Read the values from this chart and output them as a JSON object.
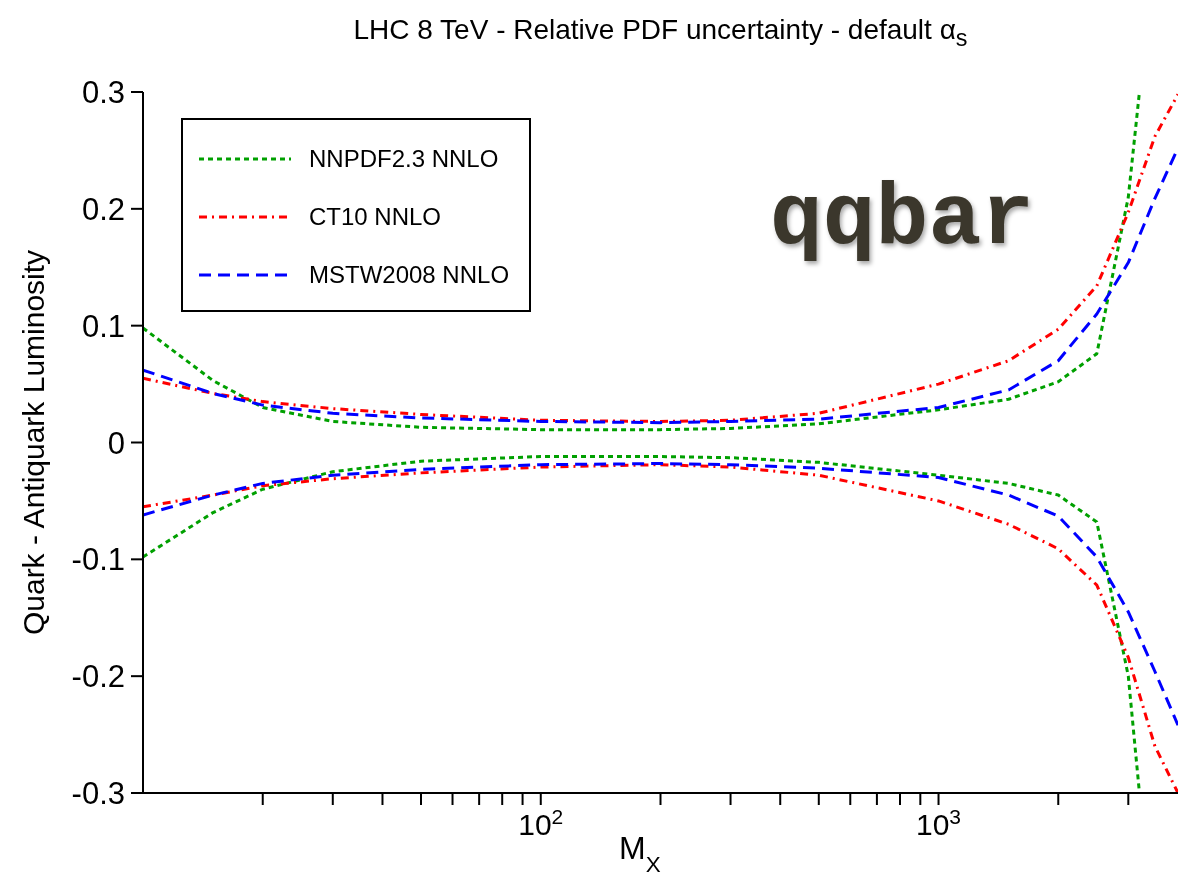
{
  "chart_data": {
    "type": "line",
    "title": "LHC 8 TeV - Relative PDF uncertainty - default α$_{s}$",
    "xlabel": "M$_{X}$",
    "ylabel": "Quark - Antiquark Luminosity",
    "annotations": [
      "qqbar"
    ],
    "log": "x",
    "legend": "top left",
    "grid": false,
    "xlim": [
      10,
      4000
    ],
    "ylim": [
      -0.3,
      0.3
    ],
    "xticks": [
      {
        "value": 20,
        "label": null
      },
      {
        "value": 30,
        "label": null
      },
      {
        "value": 40,
        "label": null
      },
      {
        "value": 50,
        "label": null
      },
      {
        "value": 60,
        "label": null
      },
      {
        "value": 70,
        "label": null
      },
      {
        "value": 80,
        "label": null
      },
      {
        "value": 90,
        "label": null
      },
      {
        "value": 100,
        "label": "10$^{2}$"
      },
      {
        "value": 200,
        "label": null
      },
      {
        "value": 300,
        "label": null
      },
      {
        "value": 400,
        "label": null
      },
      {
        "value": 500,
        "label": null
      },
      {
        "value": 600,
        "label": null
      },
      {
        "value": 700,
        "label": null
      },
      {
        "value": 800,
        "label": null
      },
      {
        "value": 900,
        "label": null
      },
      {
        "value": 1000,
        "label": "10$^{3}$"
      },
      {
        "value": 2000,
        "label": null
      },
      {
        "value": 3000,
        "label": null
      }
    ],
    "yticks": [
      -0.3,
      -0.2,
      -0.1,
      0,
      0.1,
      0.2,
      0.3
    ],
    "series": [
      {
        "name": "NNPDF2.3 NNLO",
        "color": "#00a000",
        "line_style": "dotted",
        "x": [
          10,
          15,
          20,
          30,
          50,
          100,
          200,
          300,
          500,
          1000,
          1500,
          2000,
          2500,
          3000,
          3200
        ],
        "values": [
          0.098,
          0.053,
          0.03,
          0.018,
          0.013,
          0.011,
          0.011,
          0.012,
          0.016,
          0.028,
          0.037,
          0.052,
          0.076,
          0.21,
          0.3
        ]
      },
      {
        "name": "CT10 NNLO",
        "color": "#ff0000",
        "line_style": "dashdot",
        "x": [
          10,
          15,
          20,
          30,
          50,
          100,
          200,
          300,
          500,
          1000,
          1500,
          2000,
          2500,
          3000,
          3500,
          4000
        ],
        "values": [
          0.055,
          0.042,
          0.035,
          0.029,
          0.024,
          0.019,
          0.018,
          0.019,
          0.025,
          0.05,
          0.07,
          0.097,
          0.134,
          0.197,
          0.262,
          0.298
        ]
      },
      {
        "name": "MSTW2008 NNLO",
        "color": "#0000ff",
        "line_style": "dashed",
        "x": [
          10,
          15,
          20,
          30,
          50,
          100,
          200,
          300,
          500,
          1000,
          1500,
          2000,
          2500,
          3000,
          3500,
          4000
        ],
        "values": [
          0.062,
          0.042,
          0.032,
          0.025,
          0.021,
          0.018,
          0.017,
          0.018,
          0.02,
          0.03,
          0.045,
          0.07,
          0.11,
          0.154,
          0.209,
          0.252
        ]
      },
      {
        "color": "#00a000",
        "line_style": "dotted",
        "x": [
          10,
          15,
          20,
          30,
          50,
          100,
          200,
          300,
          500,
          1000,
          1500,
          2000,
          2500,
          3000,
          3200
        ],
        "values": [
          -0.098,
          -0.06,
          -0.04,
          -0.025,
          -0.016,
          -0.012,
          -0.012,
          -0.013,
          -0.017,
          -0.028,
          -0.035,
          -0.045,
          -0.068,
          -0.2,
          -0.3
        ]
      },
      {
        "color": "#ff0000",
        "line_style": "dashdot",
        "x": [
          10,
          15,
          20,
          30,
          50,
          100,
          200,
          300,
          500,
          1000,
          1500,
          2000,
          2500,
          3000,
          3500,
          4000
        ],
        "values": [
          -0.055,
          -0.045,
          -0.037,
          -0.031,
          -0.026,
          -0.021,
          -0.019,
          -0.021,
          -0.028,
          -0.05,
          -0.07,
          -0.091,
          -0.122,
          -0.184,
          -0.26,
          -0.3
        ]
      },
      {
        "color": "#0000ff",
        "line_style": "dashed",
        "x": [
          10,
          15,
          20,
          30,
          50,
          100,
          200,
          300,
          500,
          1000,
          1500,
          2000,
          2500,
          3000,
          3500,
          4000
        ],
        "values": [
          -0.062,
          -0.045,
          -0.035,
          -0.028,
          -0.023,
          -0.019,
          -0.018,
          -0.019,
          -0.022,
          -0.03,
          -0.045,
          -0.063,
          -0.098,
          -0.145,
          -0.196,
          -0.242
        ]
      }
    ]
  }
}
